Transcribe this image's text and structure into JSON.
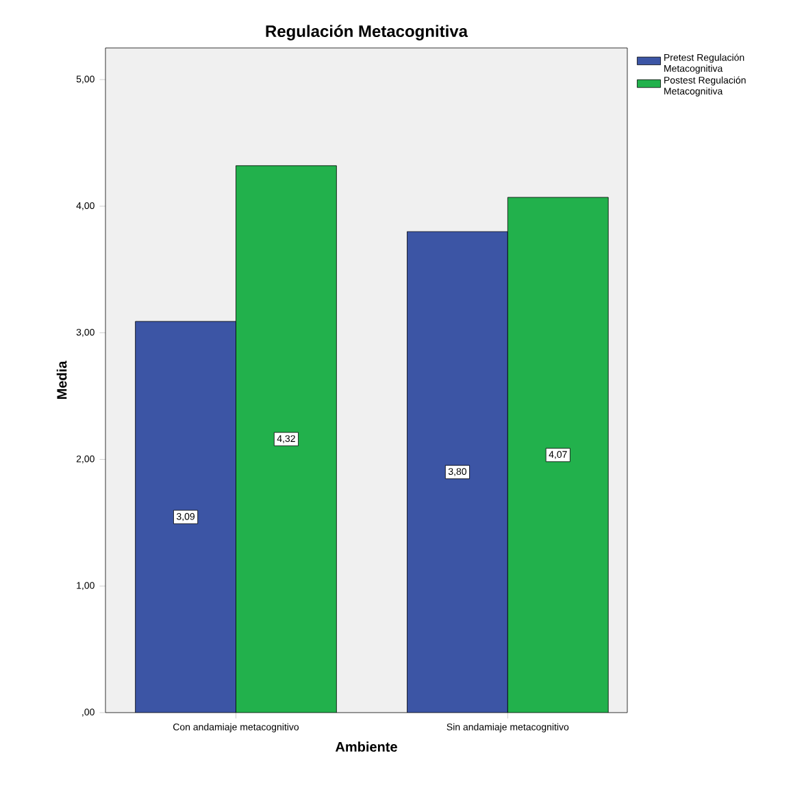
{
  "chart_data": {
    "type": "bar",
    "title": "Regulación Metacognitiva",
    "xlabel": "Ambiente",
    "ylabel": "Media",
    "categories": [
      "Con andamiaje metacognitivo",
      "Sin andamiaje metacognitivo"
    ],
    "series": [
      {
        "name": "Pretest Regulación Metacognitiva",
        "color": "#3c55a5",
        "values": [
          3.09,
          3.8
        ],
        "value_labels": [
          "3,09",
          "3,80"
        ]
      },
      {
        "name": "Postest Regulación Metacognitiva",
        "color": "#22b14c",
        "values": [
          4.32,
          4.07
        ],
        "value_labels": [
          "4,32",
          "4,07"
        ]
      }
    ],
    "ylim": [
      0,
      5.25
    ],
    "yticks": [
      {
        "value": 0,
        "label": ",00"
      },
      {
        "value": 1,
        "label": "1,00"
      },
      {
        "value": 2,
        "label": "2,00"
      },
      {
        "value": 3,
        "label": "3,00"
      },
      {
        "value": 4,
        "label": "4,00"
      },
      {
        "value": 5,
        "label": "5,00"
      }
    ],
    "legend": "top right",
    "grid": false
  }
}
